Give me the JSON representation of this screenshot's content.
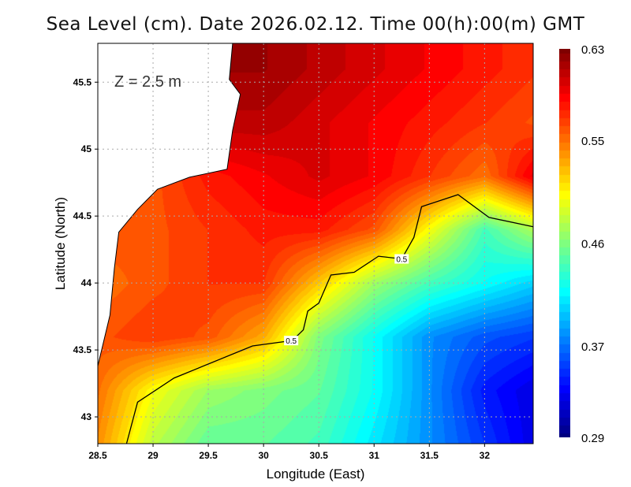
{
  "chart_data": {
    "type": "heatmap",
    "title": "Sea Level (cm). Date 2026.02.12. Time 00(h):00(m) GMT",
    "annotation": "Z = 2.5 m",
    "xlabel": "Longitude (East)",
    "ylabel": "Latitude (North)",
    "xlim": [
      28.5,
      32.44
    ],
    "ylim": [
      42.8,
      45.79
    ],
    "xticks": [
      "28.5",
      "29",
      "29.5",
      "30",
      "30.5",
      "31",
      "31.5",
      "32"
    ],
    "yticks": [
      "43",
      "43.5",
      "44",
      "44.5",
      "45",
      "45.5"
    ],
    "grid": true,
    "colormap": "jet",
    "colorbar": {
      "range": [
        0.29,
        0.63
      ],
      "tick_labels": [
        "0.63",
        "0.55",
        "0.46",
        "0.37",
        "0.29"
      ],
      "ticks": [
        0.63,
        0.55,
        0.46,
        0.37,
        0.29
      ]
    },
    "grid_lon": [
      28.5,
      29,
      29.5,
      30,
      30.5,
      31,
      31.5,
      32,
      32.5
    ],
    "grid_lat": [
      45.6,
      45.2,
      44.8,
      44.4,
      44.0,
      43.6,
      43.2,
      42.8
    ],
    "values": [
      [
        null,
        null,
        null,
        0.62,
        0.61,
        0.6,
        0.59,
        0.58,
        0.57
      ],
      [
        null,
        null,
        null,
        0.61,
        0.6,
        0.59,
        0.58,
        0.57,
        0.56
      ],
      [
        null,
        0.56,
        0.58,
        0.59,
        0.6,
        0.59,
        0.57,
        0.55,
        0.6
      ],
      [
        null,
        0.56,
        0.57,
        0.58,
        0.58,
        0.56,
        0.5,
        0.44,
        0.48
      ],
      [
        0.55,
        0.56,
        0.57,
        0.57,
        0.52,
        0.47,
        0.44,
        0.42,
        0.4
      ],
      [
        0.56,
        0.57,
        0.56,
        0.53,
        0.46,
        0.42,
        0.38,
        0.36,
        0.35
      ],
      [
        0.55,
        0.5,
        0.47,
        0.46,
        0.45,
        0.42,
        0.38,
        0.34,
        0.32
      ],
      [
        0.54,
        0.48,
        0.45,
        0.45,
        0.44,
        0.41,
        0.38,
        0.35,
        0.32
      ]
    ],
    "contour": {
      "level_label": "0.5",
      "label_positions": [
        [
          30.25,
          43.57
        ],
        [
          31.25,
          44.18
        ]
      ],
      "points": [
        [
          28.76,
          42.8
        ],
        [
          28.86,
          43.11
        ],
        [
          29.19,
          43.29
        ],
        [
          29.9,
          43.53
        ],
        [
          30.26,
          43.57
        ],
        [
          30.36,
          43.65
        ],
        [
          30.4,
          43.79
        ],
        [
          30.5,
          43.85
        ],
        [
          30.61,
          44.06
        ],
        [
          30.82,
          44.08
        ],
        [
          31.04,
          44.2
        ],
        [
          31.25,
          44.18
        ],
        [
          31.36,
          44.34
        ],
        [
          31.43,
          44.57
        ],
        [
          31.76,
          44.66
        ],
        [
          32.04,
          44.49
        ],
        [
          32.44,
          44.42
        ]
      ]
    },
    "coastline": [
      [
        29.72,
        45.79
      ],
      [
        29.69,
        45.52
      ],
      [
        29.79,
        45.41
      ],
      [
        29.72,
        45.14
      ],
      [
        29.67,
        44.85
      ],
      [
        29.33,
        44.79
      ],
      [
        29.04,
        44.7
      ],
      [
        28.86,
        44.55
      ],
      [
        28.69,
        44.38
      ],
      [
        28.65,
        44.11
      ],
      [
        28.61,
        43.76
      ],
      [
        28.5,
        43.38
      ]
    ]
  }
}
